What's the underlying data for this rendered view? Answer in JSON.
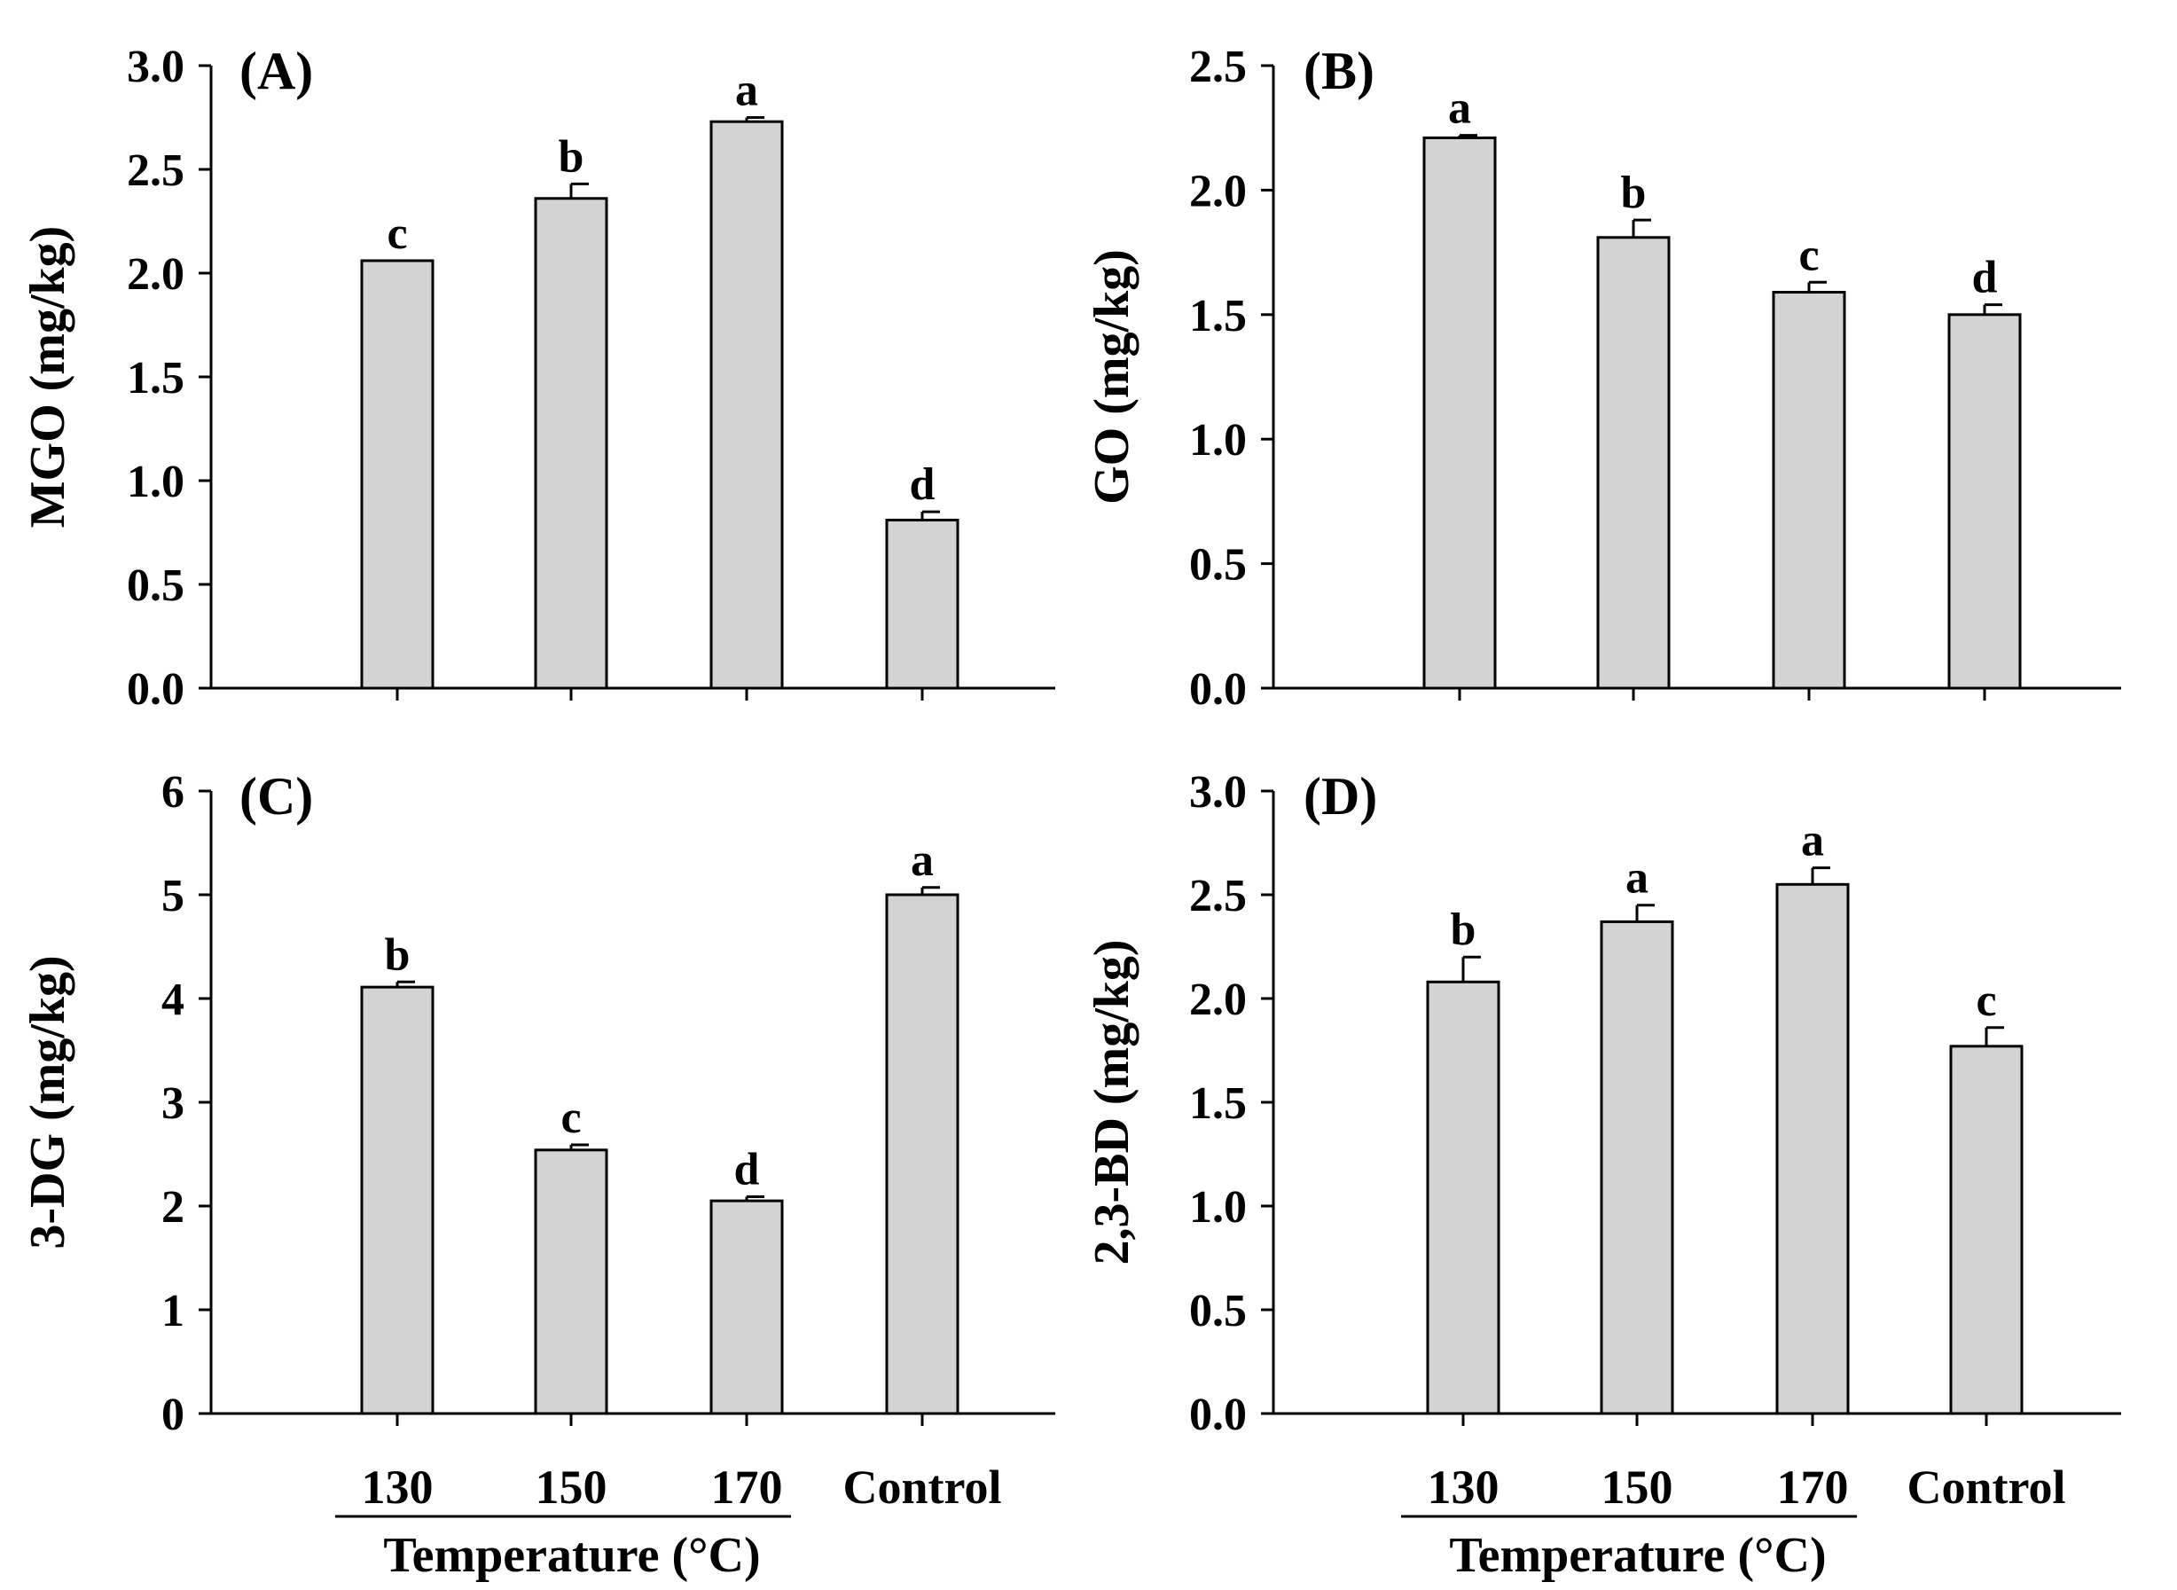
{
  "figure": {
    "categories": [
      "130",
      "150",
      "170",
      "Control"
    ],
    "group_title": "Temperature (°C)"
  },
  "chart_data": [
    {
      "type": "bar",
      "panel": "(A)",
      "title": "",
      "xlabel": "",
      "ylabel": "MGO (mg/kg)",
      "categories": [
        "130",
        "150",
        "170",
        "Control"
      ],
      "values": [
        2.06,
        2.36,
        2.73,
        0.81
      ],
      "errors": [
        0.0,
        0.07,
        0.02,
        0.04
      ],
      "letters": [
        "c",
        "b",
        "a",
        "d"
      ],
      "ylim": [
        0,
        3.0
      ],
      "yticks": [
        0.0,
        0.5,
        1.0,
        1.5,
        2.0,
        2.5,
        3.0
      ],
      "ytick_labels": [
        "0.0",
        "0.5",
        "1.0",
        "1.5",
        "2.0",
        "2.5",
        "3.0"
      ],
      "bar_color": "#d3d3d3",
      "grid": false
    },
    {
      "type": "bar",
      "panel": "(B)",
      "title": "",
      "xlabel": "",
      "ylabel": "GO (mg/kg)",
      "categories": [
        "130",
        "150",
        "170",
        "Control"
      ],
      "values": [
        2.21,
        1.81,
        1.59,
        1.5
      ],
      "errors": [
        0.01,
        0.07,
        0.04,
        0.04
      ],
      "letters": [
        "a",
        "b",
        "c",
        "d"
      ],
      "ylim": [
        0,
        2.5
      ],
      "yticks": [
        0.0,
        0.5,
        1.0,
        1.5,
        2.0,
        2.5
      ],
      "ytick_labels": [
        "0.0",
        "0.5",
        "1.0",
        "1.5",
        "2.0",
        "2.5"
      ],
      "bar_color": "#d3d3d3",
      "grid": false
    },
    {
      "type": "bar",
      "panel": "(C)",
      "title": "",
      "xlabel": "Temperature (°C)",
      "ylabel": "3-DG (mg/kg)",
      "categories": [
        "130",
        "150",
        "170",
        "Control"
      ],
      "values": [
        4.11,
        2.54,
        2.05,
        5.0
      ],
      "errors": [
        0.05,
        0.05,
        0.04,
        0.07
      ],
      "letters": [
        "b",
        "c",
        "d",
        "a"
      ],
      "ylim": [
        0,
        6
      ],
      "yticks": [
        0,
        1,
        2,
        3,
        4,
        5,
        6
      ],
      "ytick_labels": [
        "0",
        "1",
        "2",
        "3",
        "4",
        "5",
        "6"
      ],
      "bar_color": "#d3d3d3",
      "grid": false
    },
    {
      "type": "bar",
      "panel": "(D)",
      "title": "",
      "xlabel": "Temperature (°C)",
      "ylabel": "2,3-BD (mg/kg)",
      "categories": [
        "130",
        "150",
        "170",
        "Control"
      ],
      "values": [
        2.08,
        2.37,
        2.55,
        1.77
      ],
      "errors": [
        0.12,
        0.08,
        0.08,
        0.09
      ],
      "letters": [
        "b",
        "a",
        "a",
        "c"
      ],
      "ylim": [
        0,
        3.0
      ],
      "yticks": [
        0.0,
        0.5,
        1.0,
        1.5,
        2.0,
        2.5,
        3.0
      ],
      "ytick_labels": [
        "0.0",
        "0.5",
        "1.0",
        "1.5",
        "2.0",
        "2.5",
        "3.0"
      ],
      "bar_color": "#d3d3d3",
      "grid": false
    }
  ]
}
